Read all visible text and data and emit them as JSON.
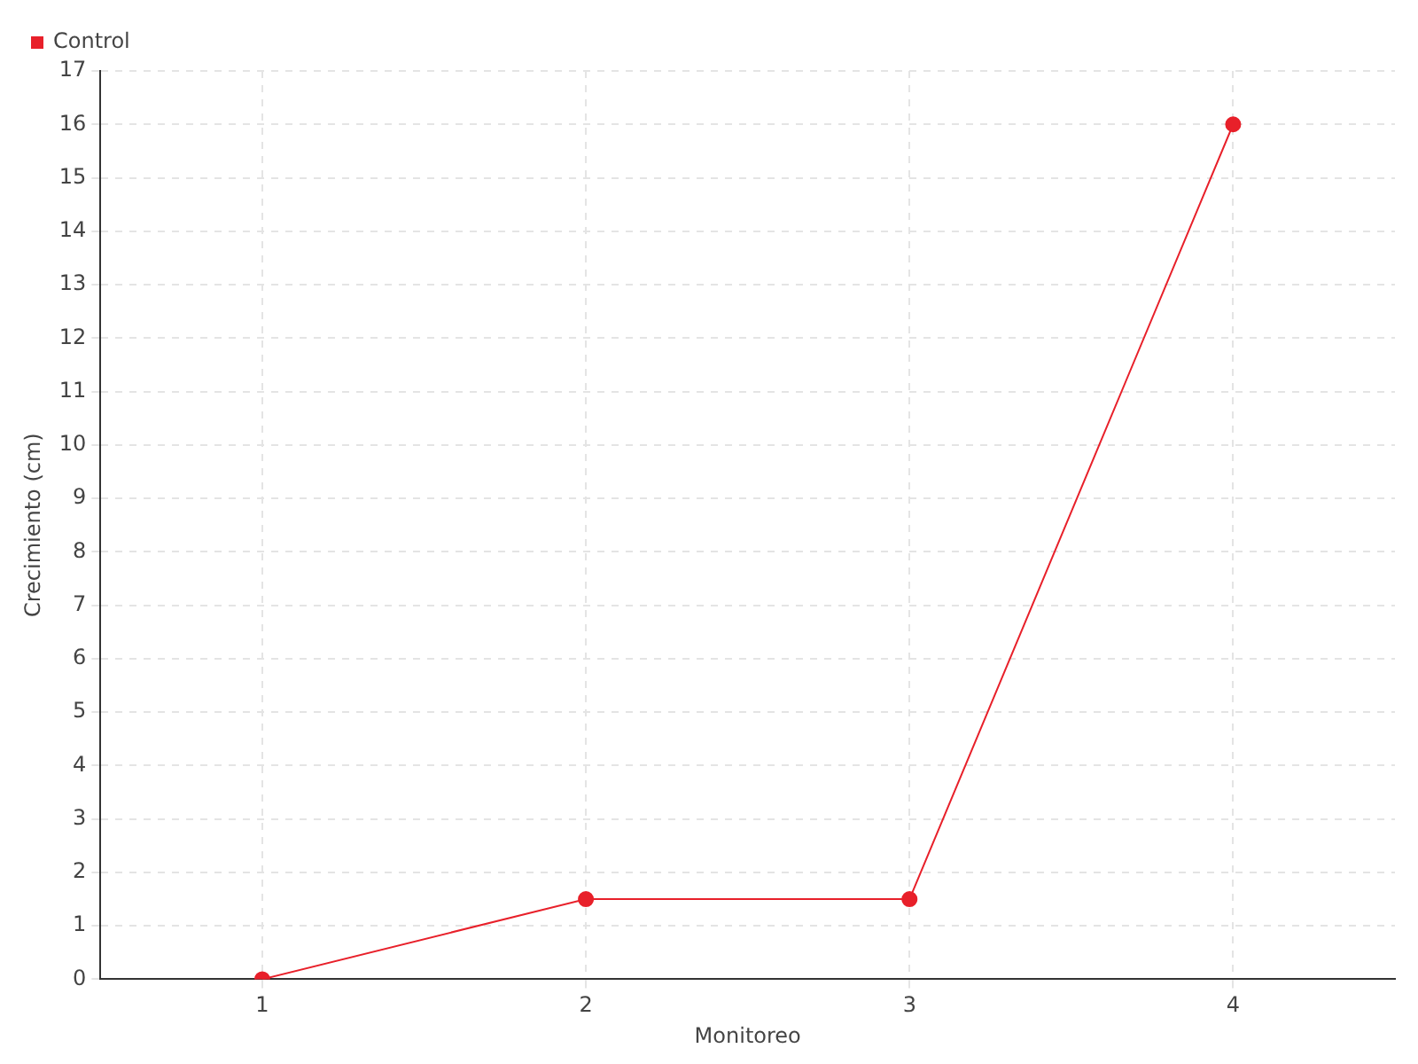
{
  "chart_data": {
    "type": "line",
    "xlabel": "Monitoreo",
    "ylabel": "Crecimiento (cm)",
    "categories": [
      "1",
      "2",
      "3",
      "4"
    ],
    "series": [
      {
        "name": "Control",
        "color": "#e8202a",
        "values": [
          0,
          1.5,
          1.5,
          16
        ]
      }
    ],
    "ylim": [
      0,
      17
    ],
    "yticks": [
      0,
      1,
      2,
      3,
      4,
      5,
      6,
      7,
      8,
      9,
      10,
      11,
      12,
      13,
      14,
      15,
      16,
      17
    ],
    "grid": true,
    "legend": "top left",
    "marker": "circle",
    "line_style": "solid"
  }
}
